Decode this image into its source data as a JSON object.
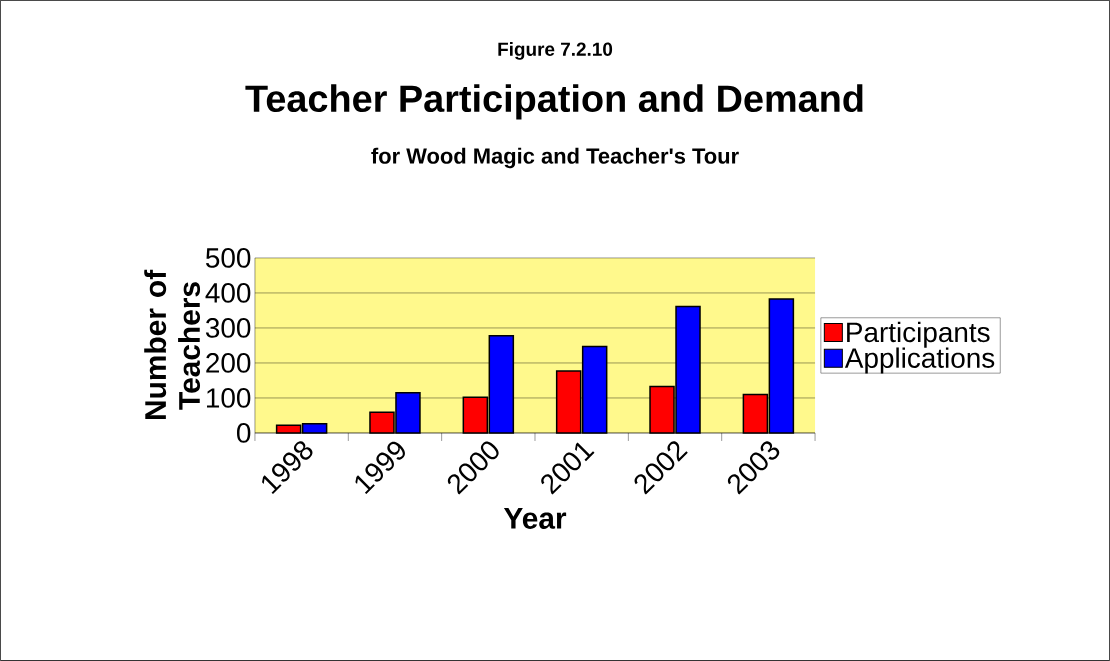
{
  "chart_data": {
    "type": "bar",
    "title": "Teacher Participation and Demand",
    "subtitle": "for Wood Magic and Teacher's Tour",
    "annotations": [
      "Figure 7.2.10"
    ],
    "xlabel": "Year",
    "ylabel": "Number of Teachers",
    "categories": [
      "1998",
      "1999",
      "2000",
      "2001",
      "2002",
      "2003"
    ],
    "series": [
      {
        "name": "Participants",
        "color": "#ff0000",
        "values": [
          22,
          59,
          102,
          177,
          133,
          110
        ]
      },
      {
        "name": "Applications",
        "color": "#0000ff",
        "values": [
          26,
          115,
          278,
          247,
          361,
          383
        ]
      }
    ],
    "ylim": [
      0,
      500
    ],
    "yticks": [
      0,
      100,
      200,
      300,
      400,
      500
    ],
    "grid": "y",
    "legend": "right"
  }
}
